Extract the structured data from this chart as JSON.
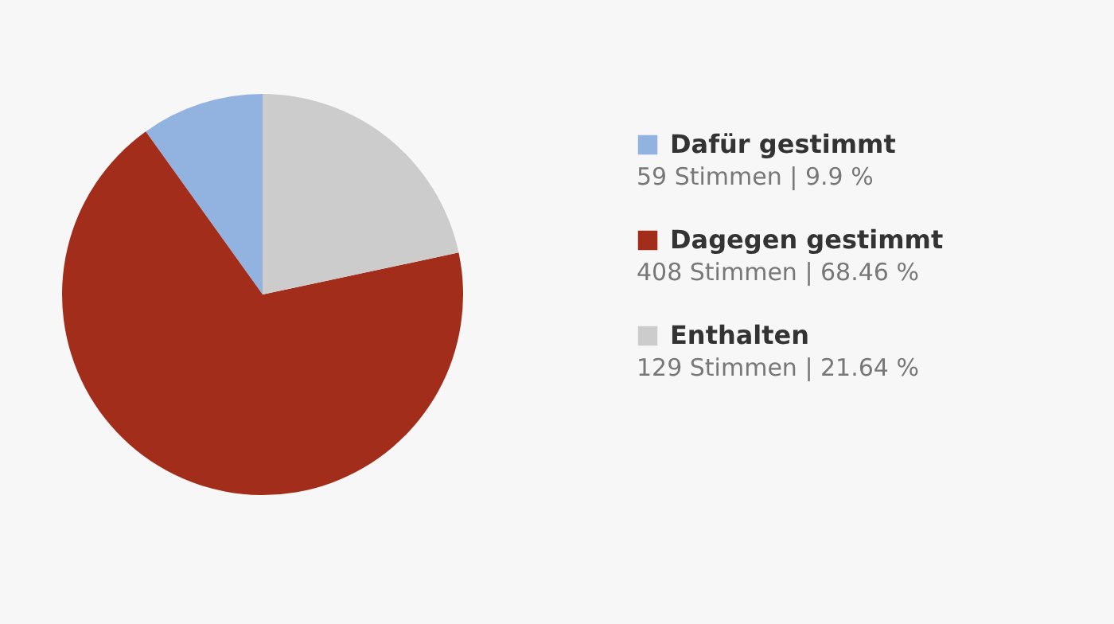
{
  "chart_data": {
    "type": "pie",
    "categories": [
      "Dafür gestimmt",
      "Dagegen gestimmt",
      "Enthalten"
    ],
    "values": [
      59,
      408,
      129
    ],
    "colors": [
      "#92b2e0",
      "#a22d1a",
      "#cccccc"
    ],
    "value_labels": [
      "59 Stimmen | 9.9 %",
      "408 Stimmen | 68.46 %",
      "129 Stimmen | 21.64 %"
    ],
    "legend": "right"
  }
}
